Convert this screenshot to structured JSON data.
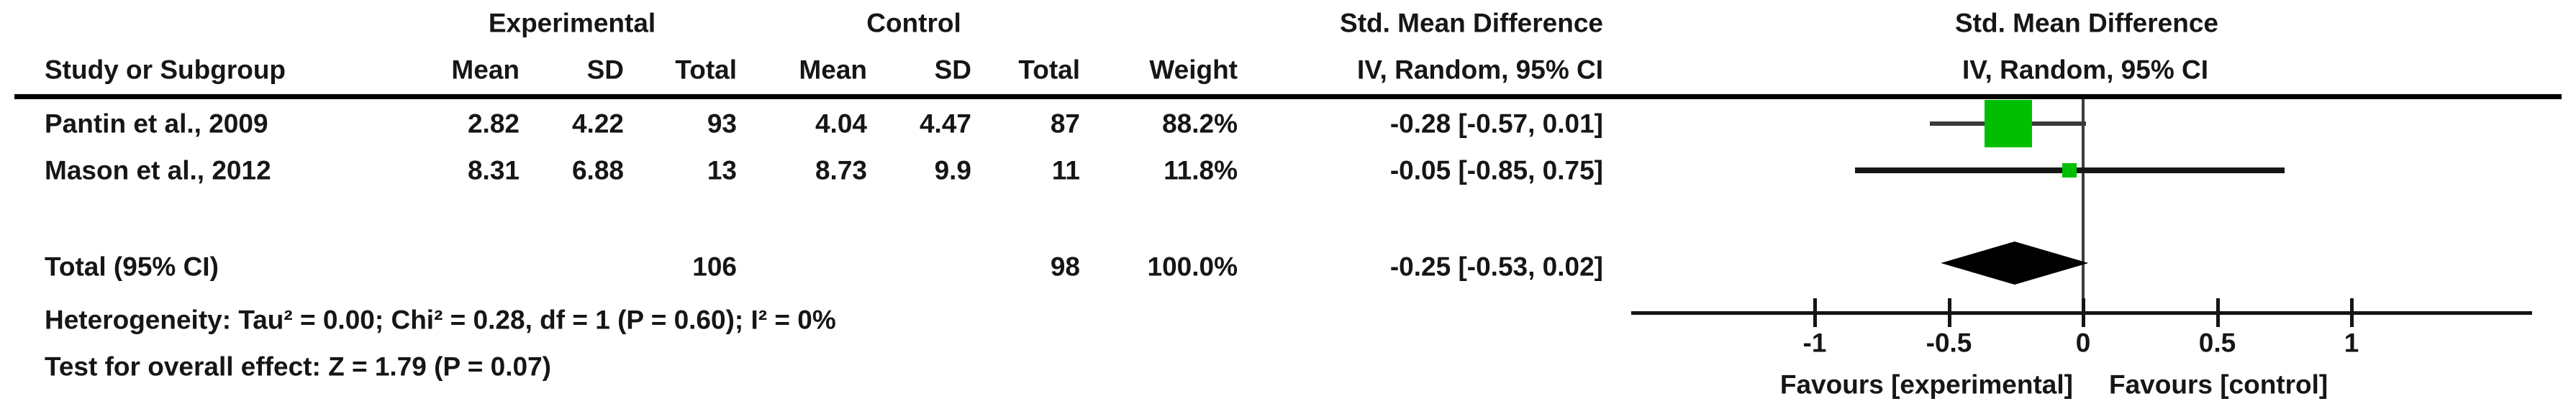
{
  "figure": {
    "left": {
      "group_experimental": "Experimental",
      "group_control": "Control",
      "group_effect": "Std. Mean Difference",
      "columns": {
        "study": "Study or Subgroup",
        "mean_e": "Mean",
        "sd_e": "SD",
        "total_e": "Total",
        "mean_c": "Mean",
        "sd_c": "SD",
        "total_c": "Total",
        "weight": "Weight",
        "effect": "IV, Random, 95% CI"
      },
      "rows": [
        {
          "study": "Pantin et al., 2009",
          "mean_e": "2.82",
          "sd_e": "4.22",
          "total_e": "93",
          "mean_c": "4.04",
          "sd_c": "4.47",
          "total_c": "87",
          "weight": "88.2%",
          "effect": "-0.28 [-0.57, 0.01]"
        },
        {
          "study": "Mason et al., 2012",
          "mean_e": "8.31",
          "sd_e": "6.88",
          "total_e": "13",
          "mean_c": "8.73",
          "sd_c": "9.9",
          "total_c": "11",
          "weight": "11.8%",
          "effect": "-0.05 [-0.85, 0.75]"
        }
      ],
      "total_row": {
        "label": "Total (95% CI)",
        "total_e": "106",
        "total_c": "98",
        "weight": "100.0%",
        "effect": "-0.25 [-0.53, 0.02]"
      },
      "footnotes": {
        "heterogeneity": "Heterogeneity: Tau² = 0.00; Chi² = 0.28, df = 1 (P = 0.60); I² = 0%",
        "overall_effect": "Test for overall effect: Z = 1.79 (P = 0.07)"
      }
    },
    "plot": {
      "header_line1": "Std. Mean Difference",
      "header_line2": "IV, Random, 95% CI",
      "favours_left": "Favours [experimental]",
      "favours_right": "Favours [control]"
    }
  },
  "chart_data": {
    "type": "forest",
    "effect_measure": "Std. Mean Difference",
    "model": "IV, Random, 95% CI",
    "studies": [
      {
        "name": "Pantin et al., 2009",
        "exp": {
          "mean": 2.82,
          "sd": 4.22,
          "total": 93
        },
        "ctrl": {
          "mean": 4.04,
          "sd": 4.47,
          "total": 87
        },
        "weight_pct": 88.2,
        "smd": -0.28,
        "ci": [
          -0.57,
          0.01
        ]
      },
      {
        "name": "Mason et al., 2012",
        "exp": {
          "mean": 8.31,
          "sd": 6.88,
          "total": 13
        },
        "ctrl": {
          "mean": 8.73,
          "sd": 9.9,
          "total": 11
        },
        "weight_pct": 11.8,
        "smd": -0.05,
        "ci": [
          -0.85,
          0.75
        ]
      }
    ],
    "total": {
      "label": "Total (95% CI)",
      "exp_total": 106,
      "ctrl_total": 98,
      "weight_pct": 100.0,
      "smd": -0.25,
      "ci": [
        -0.53,
        0.02
      ]
    },
    "heterogeneity": {
      "tau2": 0.0,
      "chi2": 0.28,
      "df": 1,
      "p": 0.6,
      "i2_pct": 0
    },
    "overall_effect": {
      "z": 1.79,
      "p": 0.07
    },
    "axis": {
      "ticks": [
        -1,
        -0.5,
        0,
        0.5,
        1
      ],
      "tick_labels": [
        "-1",
        "-0.5",
        "0",
        "0.5",
        "1"
      ],
      "xlim": [
        -1.69,
        1.67
      ],
      "favours_left": "Favours [experimental]",
      "favours_right": "Favours [control]"
    },
    "marker_color": "#00bf00",
    "diamond_color": "#000000",
    "axis_color": "#151515",
    "zero_line_color": "#3d3d3d"
  }
}
